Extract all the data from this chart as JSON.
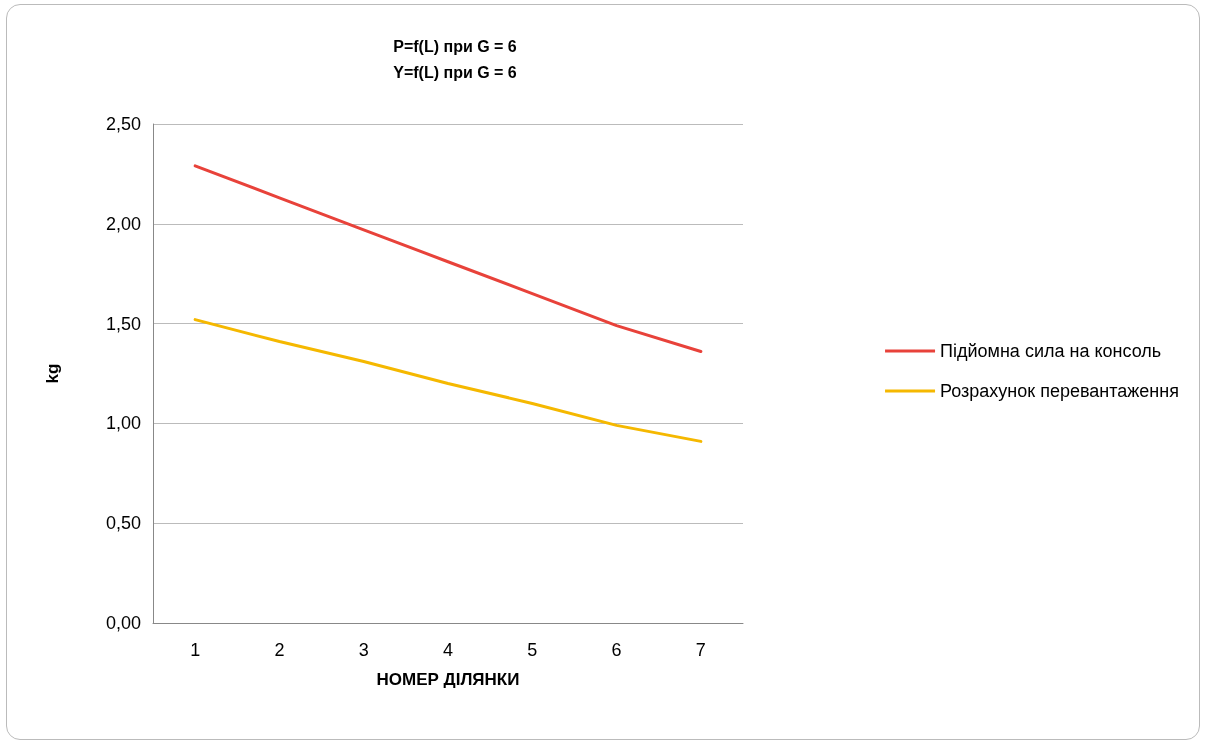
{
  "chart_data": {
    "type": "line",
    "title": "P=f(L) при G = 6\nY=f(L) при G = 6",
    "xlabel": "НОМЕР ДІЛЯНКИ",
    "ylabel": "kg",
    "categories": [
      "1",
      "2",
      "3",
      "4",
      "5",
      "6",
      "7"
    ],
    "series": [
      {
        "name": "Підйомна сила на консоль",
        "color": "#e8423a",
        "values": [
          2.29,
          2.13,
          1.97,
          1.81,
          1.65,
          1.49,
          1.36
        ]
      },
      {
        "name": "Розрахунок перевантаження",
        "color": "#f5b800",
        "values": [
          1.52,
          1.41,
          1.31,
          1.2,
          1.1,
          0.99,
          0.91
        ]
      }
    ],
    "ylim": [
      0,
      2.5
    ],
    "yticks": [
      {
        "value": 0,
        "label": "0,00"
      },
      {
        "value": 0.5,
        "label": "0,50"
      },
      {
        "value": 1,
        "label": "1,00"
      },
      {
        "value": 1.5,
        "label": "1,50"
      },
      {
        "value": 2,
        "label": "2,00"
      },
      {
        "value": 2.5,
        "label": "2,50"
      }
    ],
    "grid": "y",
    "legend": "right",
    "marker": "none",
    "line_style": "solid"
  }
}
